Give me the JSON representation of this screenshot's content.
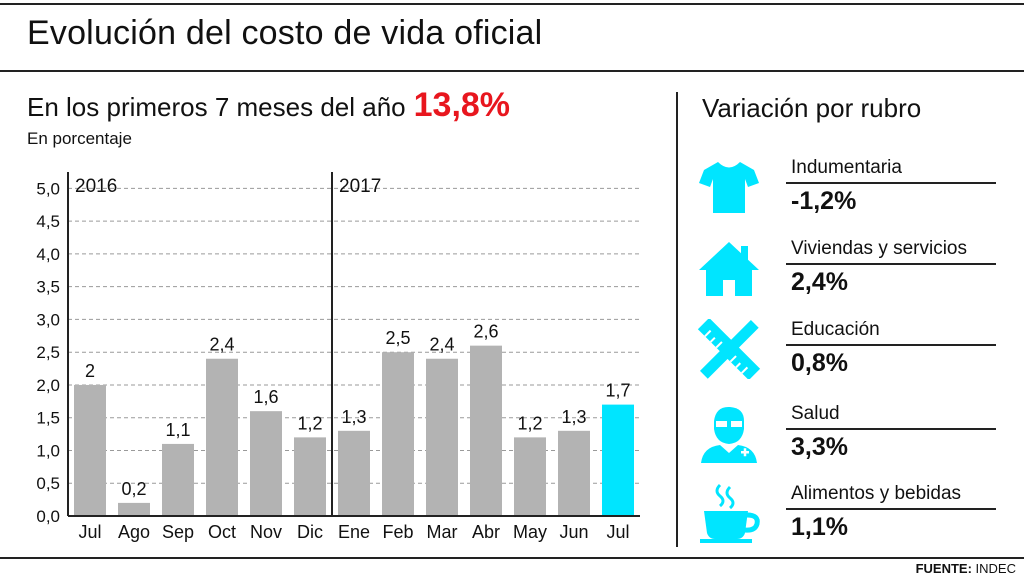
{
  "header": {
    "title": "Evolución del costo de vida oficial"
  },
  "chart_section": {
    "subtitle": "En los primeros 7 meses del año",
    "highlight": "13,8%",
    "unit": "En porcentaje"
  },
  "chart_data": {
    "type": "bar",
    "categories": [
      "Jul",
      "Ago",
      "Sep",
      "Oct",
      "Nov",
      "Dic",
      "Ene",
      "Feb",
      "Mar",
      "Abr",
      "May",
      "Jun",
      "Jul"
    ],
    "values": [
      2,
      0.2,
      1.1,
      2.4,
      1.6,
      1.2,
      1.3,
      2.5,
      2.4,
      2.6,
      1.2,
      1.3,
      1.7
    ],
    "value_labels": [
      "2",
      "0,2",
      "1,1",
      "2,4",
      "1,6",
      "1,2",
      "1,3",
      "2,5",
      "2,4",
      "2,6",
      "1,2",
      "1,3",
      "1,7"
    ],
    "y_ticks": [
      0,
      0.5,
      1,
      1.5,
      2,
      2.5,
      3,
      3.5,
      4,
      4.5,
      5
    ],
    "y_tick_labels": [
      "0,0",
      "0,5",
      "1,0",
      "1,5",
      "2,0",
      "2,5",
      "3,0",
      "3,5",
      "4,0",
      "4,5",
      "5,0"
    ],
    "ylim": [
      0,
      5.25
    ],
    "year_groups": [
      {
        "label": "2016",
        "start_index": 0
      },
      {
        "label": "2017",
        "start_index": 6
      }
    ],
    "highlight_index": 12,
    "bar_color": "#b3b3b3",
    "highlight_color": "#00e5ff",
    "grid": "dashed horizontal"
  },
  "rubros": {
    "title": "Variación por rubro",
    "icon_color": "#00e5ff",
    "items": [
      {
        "label": "Indumentaria",
        "value": "-1,2%",
        "icon": "tshirt-icon"
      },
      {
        "label": "Viviendas y servicios",
        "value": "2,4%",
        "icon": "house-icon"
      },
      {
        "label": "Educación",
        "value": "0,8%",
        "icon": "ruler-pencil-icon"
      },
      {
        "label": "Salud",
        "value": "3,3%",
        "icon": "doctor-icon"
      },
      {
        "label": "Alimentos y bebidas",
        "value": "1,1%",
        "icon": "coffee-cup-icon"
      }
    ]
  },
  "footer": {
    "source_label": "FUENTE:",
    "source_value": "INDEC"
  }
}
